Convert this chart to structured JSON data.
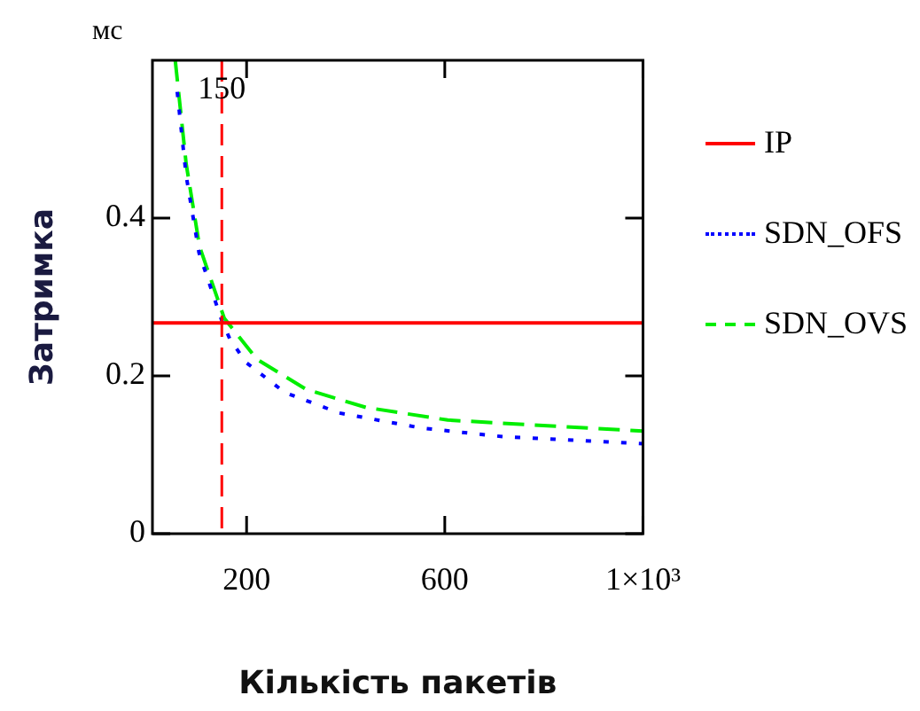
{
  "chart_data": {
    "type": "line",
    "xlabel": "Кількість пакетів",
    "ylabel": "Затримка",
    "annotations": [
      "мс"
    ],
    "xlim": [
      10,
      1000
    ],
    "xticks": [
      200,
      600,
      {
        "value": 1000,
        "label": "1×10³"
      }
    ],
    "ylim": [
      0,
      0.6
    ],
    "yticks": [
      0,
      0.2,
      0.4
    ],
    "grid": false,
    "legend": "right",
    "marker": "none",
    "series": [
      {
        "name": "IP",
        "color": "#ff0000",
        "line_style": "solid",
        "x": [
          10,
          1000
        ],
        "values": [
          0.267,
          0.267
        ]
      },
      {
        "name": "SDN_OFS",
        "color": "#0000ff",
        "line_style": "dotted",
        "x": [
          60,
          78,
          104,
          150,
          166,
          199,
          277,
          387,
          552,
          717,
          1000
        ],
        "values": [
          0.56,
          0.454,
          0.356,
          0.27,
          0.247,
          0.217,
          0.179,
          0.153,
          0.134,
          0.123,
          0.114
        ]
      },
      {
        "name": "SDN_OVS",
        "color": "#00ee00",
        "line_style": "dashed",
        "x": [
          56,
          78,
          105,
          155,
          221,
          320,
          441,
          606,
          771,
          1000
        ],
        "values": [
          0.6,
          0.469,
          0.364,
          0.273,
          0.221,
          0.183,
          0.16,
          0.144,
          0.138,
          0.13
        ]
      }
    ],
    "ref_lines": [
      {
        "axis": "x",
        "value": 150,
        "label": "150",
        "color": "#ff0000",
        "line_style": "dashed"
      }
    ]
  }
}
